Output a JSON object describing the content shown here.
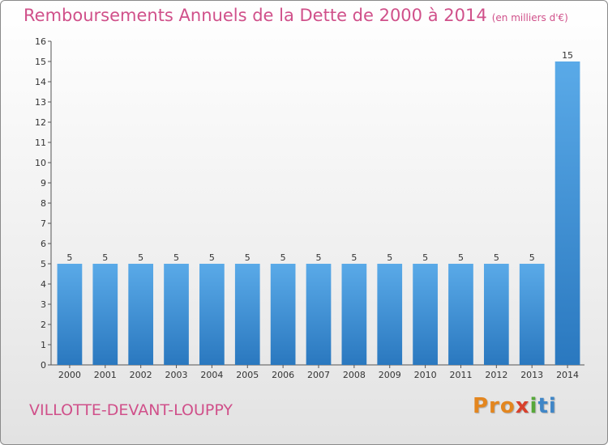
{
  "chart_data": {
    "type": "bar",
    "title": "Remboursements Annuels de la Dette de 2000 à 2014",
    "subtitle": "(en milliers d'€)",
    "categories": [
      "2000",
      "2001",
      "2002",
      "2003",
      "2004",
      "2005",
      "2006",
      "2007",
      "2008",
      "2009",
      "2010",
      "2011",
      "2012",
      "2013",
      "2014"
    ],
    "values": [
      5,
      5,
      5,
      5,
      5,
      5,
      5,
      5,
      5,
      5,
      5,
      5,
      5,
      5,
      15
    ],
    "ylim": [
      0,
      16
    ],
    "yticks": [
      0,
      1,
      2,
      3,
      4,
      5,
      6,
      7,
      8,
      9,
      10,
      11,
      12,
      13,
      14,
      15,
      16
    ],
    "grid": false,
    "bar_color": "#3a8ad2"
  },
  "footer": {
    "commune": "VILLOTTE-DEVANT-LOUPPY",
    "logo": [
      "Pro",
      "x",
      "i",
      "ti"
    ]
  }
}
